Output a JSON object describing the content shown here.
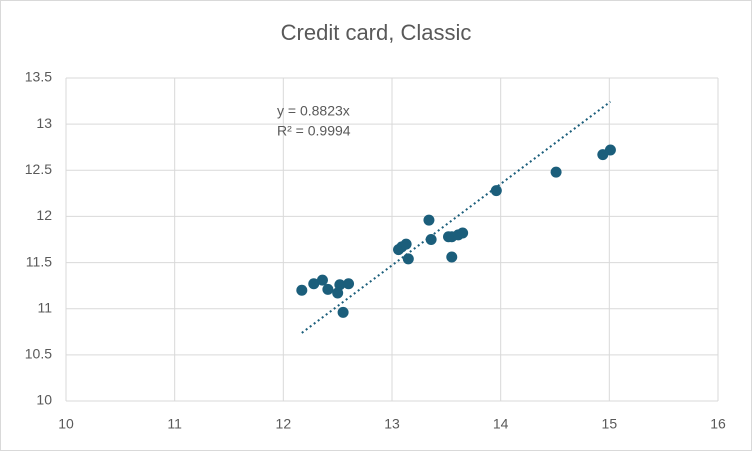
{
  "chart_data": {
    "type": "scatter",
    "title": "Credit card, Classic",
    "x": [
      12.17,
      12.28,
      12.36,
      12.41,
      12.5,
      12.52,
      12.6,
      12.55,
      13.06,
      13.09,
      13.13,
      13.15,
      13.34,
      13.36,
      13.52,
      13.55,
      13.55,
      13.61,
      13.65,
      13.96,
      14.51,
      14.94,
      15.01
    ],
    "values": [
      11.2,
      11.27,
      11.31,
      11.21,
      11.17,
      11.26,
      11.27,
      10.96,
      11.64,
      11.67,
      11.7,
      11.54,
      11.96,
      11.75,
      11.78,
      11.78,
      11.56,
      11.8,
      11.82,
      12.28,
      12.48,
      12.67,
      12.72
    ],
    "color": "#1b5e7b",
    "xlim": [
      10,
      16
    ],
    "xticks": [
      10,
      11,
      12,
      13,
      14,
      15,
      16
    ],
    "ylim": [
      10,
      13.5
    ],
    "yticks": [
      10,
      10.5,
      11,
      11.5,
      12,
      12.5,
      13,
      13.5
    ],
    "grid": true,
    "trendline": {
      "equation": "y = 0.8823x",
      "slope": 0.8823,
      "r_squared": "R² = 0.9994"
    }
  }
}
